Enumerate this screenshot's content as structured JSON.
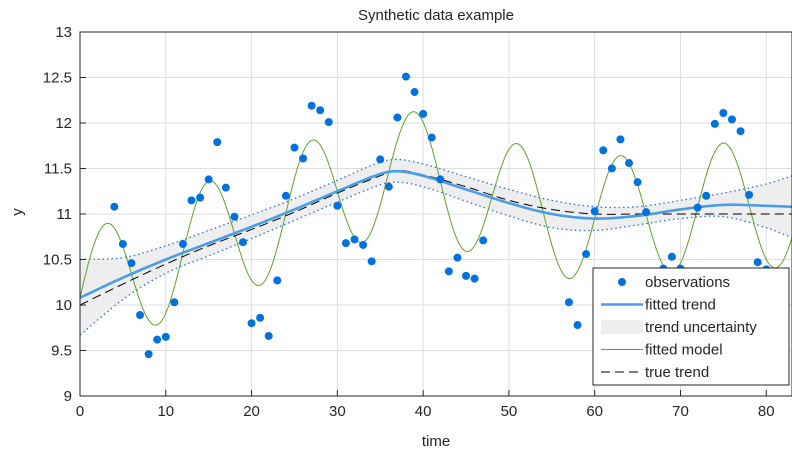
{
  "chart_data": {
    "type": "scatter",
    "title": "Synthetic data example",
    "xlabel": "time",
    "ylabel": "y",
    "xlim": [
      0,
      83
    ],
    "ylim": [
      9,
      13
    ],
    "xticks": [
      0,
      10,
      20,
      30,
      40,
      50,
      60,
      70,
      80
    ],
    "yticks": [
      9,
      9.5,
      10,
      10.5,
      11,
      11.5,
      12,
      12.5,
      13
    ],
    "grid": true,
    "legend_position": "bottom-right",
    "legend": [
      "observations",
      "fitted trend",
      "trend uncertainty",
      "fitted model",
      "true trend"
    ],
    "colors": {
      "observations": "#0072e0",
      "fitted_trend": "#4a9de8",
      "uncertainty_fill": "#eeeeee",
      "uncertainty_bound": "#2b6fd6",
      "fitted_model": "#5ea52a",
      "true_trend": "#000000"
    },
    "observations": {
      "x": [
        4,
        5,
        6,
        7,
        8,
        9,
        10,
        11,
        12,
        13,
        14,
        15,
        16,
        17,
        18,
        19,
        20,
        21,
        22,
        23,
        24,
        25,
        26,
        27,
        28,
        29,
        30,
        31,
        32,
        33,
        34,
        35,
        36,
        37,
        38,
        39,
        40,
        41,
        42,
        43,
        44,
        45,
        46,
        47,
        57,
        58,
        59,
        60,
        61,
        62,
        63,
        64,
        65,
        66,
        68,
        69,
        70,
        72,
        73,
        74,
        75,
        76,
        77,
        78,
        79,
        80
      ],
      "y": [
        11.08,
        10.67,
        10.46,
        9.89,
        9.46,
        9.62,
        9.65,
        10.03,
        10.67,
        11.15,
        11.18,
        11.38,
        11.79,
        11.29,
        10.97,
        10.69,
        9.8,
        9.86,
        9.66,
        10.27,
        11.2,
        11.73,
        11.61,
        12.19,
        12.14,
        12.01,
        11.09,
        10.68,
        10.72,
        10.66,
        10.48,
        11.6,
        11.3,
        12.06,
        12.51,
        12.34,
        12.1,
        11.84,
        11.38,
        10.37,
        10.52,
        10.32,
        10.29,
        10.71,
        10.03,
        9.78,
        10.56,
        11.03,
        11.7,
        11.5,
        11.82,
        11.56,
        11.35,
        11.02,
        10.4,
        10.53,
        10.4,
        11.07,
        11.2,
        11.99,
        12.11,
        12.04,
        11.91,
        11.21,
        10.47,
        10.39
      ]
    },
    "fitted_trend": {
      "x": [
        0,
        5,
        10,
        15,
        20,
        25,
        30,
        35,
        37,
        40,
        45,
        50,
        55,
        60,
        65,
        70,
        75,
        80,
        83
      ],
      "y": [
        10.08,
        10.3,
        10.5,
        10.68,
        10.86,
        11.05,
        11.25,
        11.44,
        11.47,
        11.42,
        11.27,
        11.12,
        11.0,
        10.95,
        10.98,
        11.05,
        11.1,
        11.09,
        11.08
      ]
    },
    "trend_uncertainty": {
      "x": [
        0,
        5,
        10,
        15,
        20,
        25,
        30,
        35,
        37,
        40,
        45,
        50,
        55,
        60,
        65,
        70,
        75,
        80,
        83
      ],
      "upper": [
        10.5,
        10.52,
        10.65,
        10.82,
        10.99,
        11.17,
        11.37,
        11.57,
        11.6,
        11.55,
        11.41,
        11.27,
        11.15,
        11.08,
        11.08,
        11.15,
        11.23,
        11.33,
        11.42
      ],
      "lower": [
        9.67,
        10.06,
        10.35,
        10.54,
        10.73,
        10.93,
        11.13,
        11.32,
        11.35,
        11.3,
        11.14,
        10.98,
        10.85,
        10.82,
        10.88,
        10.95,
        10.97,
        10.85,
        10.74
      ]
    },
    "fitted_model": {
      "amplitude": 0.68,
      "period": 12,
      "peak_x": 3
    },
    "true_trend": {
      "x": [
        0,
        5,
        10,
        15,
        20,
        25,
        30,
        35,
        37,
        40,
        45,
        50,
        55,
        60,
        65,
        70,
        75,
        80,
        83
      ],
      "y": [
        10.0,
        10.23,
        10.45,
        10.65,
        10.83,
        11.02,
        11.23,
        11.42,
        11.48,
        11.43,
        11.3,
        11.15,
        11.05,
        11.0,
        11.0,
        11.0,
        11.0,
        11.0,
        11.0
      ]
    }
  }
}
